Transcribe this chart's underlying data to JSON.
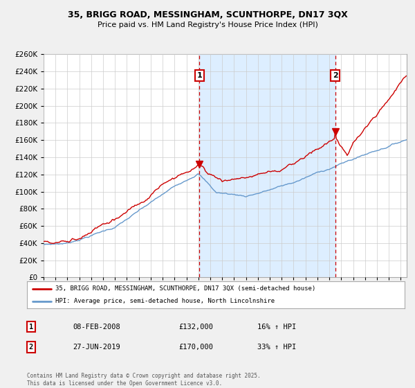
{
  "title_line1": "35, BRIGG ROAD, MESSINGHAM, SCUNTHORPE, DN17 3QX",
  "title_line2": "Price paid vs. HM Land Registry's House Price Index (HPI)",
  "bg_color": "#f0f0f0",
  "plot_bg_color": "#ffffff",
  "shade_color": "#ddeeff",
  "grid_color": "#cccccc",
  "hpi_color": "#6699cc",
  "price_color": "#cc0000",
  "vline_color": "#cc0000",
  "legend_label_price": "35, BRIGG ROAD, MESSINGHAM, SCUNTHORPE, DN17 3QX (semi-detached house)",
  "legend_label_hpi": "HPI: Average price, semi-detached house, North Lincolnshire",
  "annotation1_date": "08-FEB-2008",
  "annotation1_price": "£132,000",
  "annotation1_hpi": "16% ↑ HPI",
  "annotation2_date": "27-JUN-2019",
  "annotation2_price": "£170,000",
  "annotation2_hpi": "33% ↑ HPI",
  "footer": "Contains HM Land Registry data © Crown copyright and database right 2025.\nThis data is licensed under the Open Government Licence v3.0.",
  "ylim": [
    0,
    260000
  ],
  "ytick_step": 20000,
  "xstart_year": 1995,
  "xend_year": 2025,
  "m1_year": 2008.09,
  "m2_year": 2019.49,
  "m1_price": 132000,
  "m2_price": 170000
}
